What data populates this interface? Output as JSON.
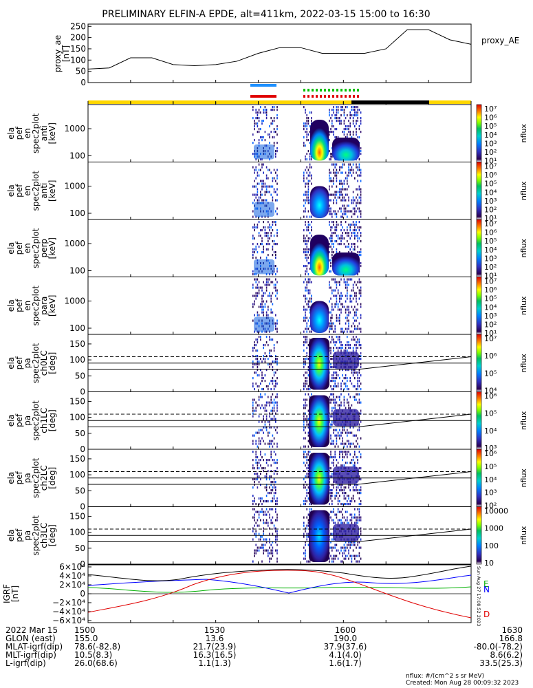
{
  "title": "PRELIMINARY ELFIN-A EPDE, alt=411km, 2022-03-15 15:00 to 16:30",
  "proxy_ae": {
    "ylabel": [
      "proxy_ae",
      "[nT]"
    ],
    "legend": "proxy_AE",
    "yticks": [
      "250",
      "200",
      "150",
      "100",
      "50",
      "0"
    ],
    "values_min": [
      0,
      5,
      10,
      15,
      20,
      25,
      30,
      35,
      40,
      45,
      50,
      55,
      60,
      65,
      70,
      75,
      80,
      85,
      90
    ],
    "values_nT": [
      60,
      65,
      110,
      110,
      80,
      75,
      80,
      95,
      130,
      155,
      155,
      130,
      130,
      130,
      150,
      235,
      235,
      190,
      170
    ]
  },
  "bars": {
    "colors": {
      "blue": "#1e90ff",
      "red": "#e00000",
      "green": "#00c000",
      "yellow": "#ffd700",
      "black": "#000000"
    }
  },
  "panels": [
    {
      "id": "anti",
      "ylabel": [
        "ela",
        "pef",
        "en",
        "spec2plot",
        "anti",
        "[keV]"
      ],
      "yticks": [
        "1000",
        "100"
      ]
    },
    {
      "id": "omni",
      "ylabel": [
        "ela",
        "pef",
        "en",
        "spec2plot",
        "anti",
        "[keV]"
      ],
      "yticks": [
        "1000",
        "100"
      ]
    },
    {
      "id": "perp",
      "ylabel": [
        "ela",
        "pef",
        "en",
        "spec2plot",
        "perp",
        "[keV]"
      ],
      "yticks": [
        "1000",
        "100"
      ]
    },
    {
      "id": "para",
      "ylabel": [
        "ela",
        "pef",
        "en",
        "spec2plot",
        "para",
        "[keV]"
      ],
      "yticks": [
        "1000",
        "100"
      ]
    },
    {
      "id": "ch0",
      "ylabel": [
        "ela",
        "pef",
        "pa",
        "spec2plot",
        "ch0LC",
        "[deg]"
      ],
      "yticks": [
        "150",
        "100",
        "50",
        "0"
      ]
    },
    {
      "id": "ch1",
      "ylabel": [
        "ela",
        "pef",
        "pa",
        "spec2plot",
        "ch1LC",
        "[deg]"
      ],
      "yticks": [
        "150",
        "100",
        "50",
        "0"
      ]
    },
    {
      "id": "ch2",
      "ylabel": [
        "ela",
        "pef",
        "pa",
        "spec2plot",
        "ch2LC",
        "[deg]"
      ],
      "yticks": [
        "150",
        "100",
        "50",
        "0"
      ]
    },
    {
      "id": "ch3",
      "ylabel": [
        "ela",
        "pef",
        "pa",
        "spec2plot",
        "ch3LC",
        "[deg]"
      ],
      "yticks": [
        "150",
        "100",
        "50",
        "0"
      ]
    }
  ],
  "colorbars": [
    {
      "label": "nflux",
      "ticks": [
        "10⁷",
        "10⁶",
        "10⁵",
        "10⁴",
        "10³",
        "10²",
        "10¹"
      ]
    },
    {
      "label": "nflux",
      "ticks": [
        "10⁷",
        "10⁶",
        "10⁵",
        "10⁴",
        "10³",
        "10²",
        "10¹"
      ]
    },
    {
      "label": "nflux",
      "ticks": [
        "10⁷",
        "10⁶",
        "10⁵",
        "10⁴",
        "10³",
        "10²",
        "10¹"
      ]
    },
    {
      "label": "nflux",
      "ticks": [
        "10⁷",
        "10⁶",
        "10⁵",
        "10⁴",
        "10³",
        "10²",
        "10¹"
      ]
    },
    {
      "label": "nflux",
      "ticks": [
        "10⁷",
        "10⁶",
        "10⁵",
        "10⁴"
      ]
    },
    {
      "label": "nflux",
      "ticks": [
        "10⁶",
        "10⁵",
        "10⁴",
        "10³"
      ]
    },
    {
      "label": "nflux",
      "ticks": [
        "10⁶",
        "10⁵",
        "10⁴",
        "10³",
        "10²"
      ]
    },
    {
      "label": "nflux",
      "ticks": [
        "10000",
        "1000",
        "100",
        "10"
      ]
    }
  ],
  "igrf": {
    "ylabel": [
      "IGRF",
      "[nT]"
    ],
    "yticks": [
      "6×10⁴",
      "4×10⁴",
      "2×10⁴",
      "0",
      "−2×10⁴",
      "−4×10⁴",
      "−6×10⁴"
    ],
    "legend": [
      "E",
      "N",
      "D"
    ],
    "legend_colors": [
      "#00b000",
      "#0000ff",
      "#e00000"
    ],
    "side_label": "Sun Aug 27  17:08:52 2023"
  },
  "chart_data": {
    "type": "line",
    "title": "PRELIMINARY ELFIN-A EPDE, alt=411km, 2022-03-15 15:00 to 16:30",
    "x_ticks": [
      "1500",
      "1530",
      "1600",
      "1630"
    ],
    "series": [
      {
        "name": "proxy_AE",
        "x_min": [
          0,
          5,
          10,
          15,
          20,
          25,
          30,
          35,
          40,
          45,
          50,
          55,
          60,
          65,
          70,
          75,
          80,
          85,
          90
        ],
        "y": [
          60,
          65,
          110,
          110,
          80,
          75,
          80,
          95,
          130,
          155,
          155,
          130,
          130,
          130,
          150,
          235,
          235,
          190,
          170
        ]
      }
    ],
    "ylim_proxy_ae": [
      0,
      260
    ],
    "ylim_pa": [
      0,
      180
    ],
    "ylim_igrf": [
      -60000,
      60000
    ]
  },
  "footer": {
    "rows": [
      [
        "2022 Mar 15",
        "1500",
        "1530",
        "1600",
        "1630"
      ],
      [
        "GLON (east)",
        "155.0",
        "13.6",
        "190.0",
        "166.8"
      ],
      [
        "MLAT-igrf(dip)",
        "78.6(-82.8)",
        "21.7(23.9)",
        "37.9(37.6)",
        "-80.0(-78.2)"
      ],
      [
        "MLT-igrf(dip)",
        "10.5(8.3)",
        "16.3(16.5)",
        "4.1(4.0)",
        "8.6(6.2)"
      ],
      [
        "L-igrf(dip)",
        "26.0(68.6)",
        "1.1(1.3)",
        "1.6(1.7)",
        "33.5(25.3)"
      ]
    ]
  },
  "credits": {
    "unit": "nflux: #/(cm^2 s sr MeV)",
    "created": "Created: Mon Aug 28 00:09:32 2023"
  }
}
